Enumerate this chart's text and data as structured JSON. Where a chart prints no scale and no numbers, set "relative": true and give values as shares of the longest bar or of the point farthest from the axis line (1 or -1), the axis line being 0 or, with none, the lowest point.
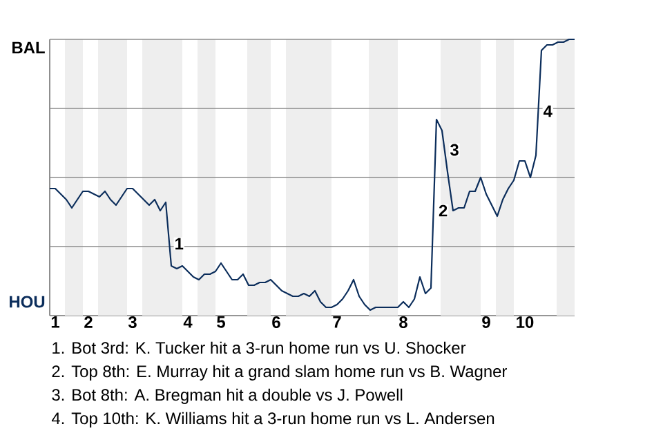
{
  "chart_data": {
    "type": "line",
    "relative": true,
    "categories": [
      null,
      "1",
      null,
      null,
      null,
      null,
      null,
      "2",
      null,
      null,
      null,
      null,
      null,
      null,
      null,
      "3",
      null,
      null,
      null,
      null,
      null,
      null,
      null,
      null,
      null,
      "4",
      null,
      null,
      null,
      null,
      null,
      "5",
      null,
      null,
      null,
      null,
      null,
      null,
      null,
      null,
      null,
      "6",
      null,
      null,
      null,
      null,
      null,
      null,
      null,
      null,
      null,
      null,
      "7",
      null,
      null,
      null,
      null,
      null,
      null,
      null,
      null,
      null,
      null,
      null,
      "8",
      null,
      null,
      null,
      null,
      null,
      null,
      null,
      null,
      null,
      null,
      null,
      null,
      null,
      null,
      "9",
      null,
      null,
      null,
      null,
      null,
      null,
      "10",
      null,
      null,
      null,
      null,
      null,
      null,
      null,
      null,
      null
    ],
    "ref_lines": [
      {
        "axis": "y",
        "value": 0.25,
        "color": "#8c8c8c"
      },
      {
        "axis": "y",
        "value": 0.5,
        "color": "#8c8c8c"
      },
      {
        "axis": "y",
        "value": 0.75,
        "color": "#8c8c8c"
      },
      {
        "axis": "y",
        "value": 1,
        "color": "#8c8c8c"
      }
    ],
    "series": [
      {
        "color": "#0b2d5b",
        "values": [
          0.46,
          0.46,
          0.44,
          0.42,
          0.39,
          0.42,
          0.45,
          0.45,
          0.44,
          0.43,
          0.45,
          0.42,
          0.4,
          0.43,
          0.46,
          0.46,
          0.44,
          0.42,
          0.4,
          0.42,
          0.38,
          0.41,
          0.18,
          0.17,
          0.18,
          0.16,
          0.14,
          0.13,
          0.15,
          0.15,
          0.16,
          0.19,
          0.16,
          0.13,
          0.13,
          0.15,
          0.11,
          0.11,
          0.12,
          0.12,
          0.13,
          0.11,
          0.09,
          0.08,
          0.07,
          0.07,
          0.08,
          0.07,
          0.09,
          0.05,
          0.03,
          0.03,
          0.04,
          0.06,
          0.09,
          0.13,
          0.07,
          0.04,
          0.02,
          0.03,
          0.03,
          0.03,
          0.03,
          0.03,
          0.05,
          0.03,
          0.06,
          0.14,
          0.08,
          0.1,
          0.71,
          0.67,
          0.52,
          0.38,
          0.39,
          0.39,
          0.45,
          0.45,
          0.5,
          0.44,
          0.4,
          0.36,
          0.42,
          0.46,
          0.49,
          0.56,
          0.56,
          0.5,
          0.58,
          0.96,
          0.98,
          0.98,
          0.99,
          0.99,
          1,
          1
        ]
      }
    ],
    "annotations": [
      "BAL",
      "HOU",
      "1",
      "2",
      "3",
      "4",
      "1. Bot 3rd: K. Tucker hit a 3-run home run vs U. Shocker",
      "2. Top 8th: E. Murray hit a grand slam home run vs B. Wagner",
      "3. Bot 8th: A. Bregman hit a double vs J. Powell",
      "4. Top 10th: K. Williams hit a 3-run home run vs L. Andersen"
    ]
  }
}
